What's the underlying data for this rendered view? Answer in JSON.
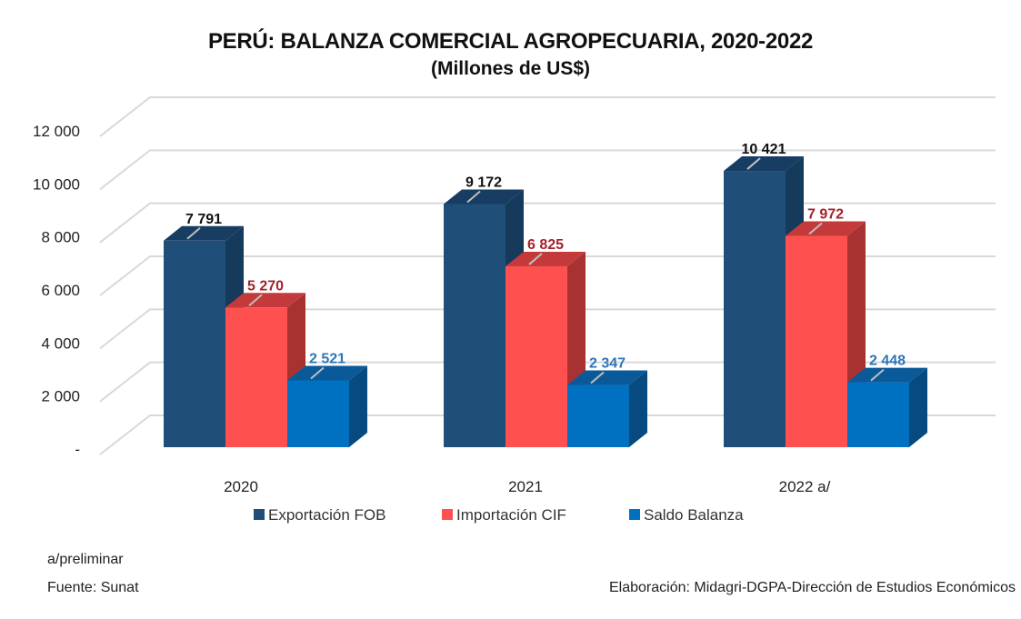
{
  "chart_data": {
    "type": "bar",
    "title": "PERÚ: BALANZA COMERCIAL AGROPECUARIA, 2020-2022",
    "subtitle": "(Millones de US$)",
    "xlabel": "",
    "ylabel": "",
    "categories": [
      "2020",
      "2021",
      "2022 a/"
    ],
    "series": [
      {
        "name": "Exportación FOB",
        "values": [
          7791,
          9172,
          10421
        ],
        "labels": [
          "7 791",
          "9 172",
          "10 421"
        ],
        "color": "#1f4e79",
        "side": "#163a5c",
        "top": "#173d63",
        "label_color": "#111111"
      },
      {
        "name": "Importación CIF",
        "values": [
          5270,
          6825,
          7972
        ],
        "labels": [
          "5 270",
          "6 825",
          "7 972"
        ],
        "color": "#ff5050",
        "side": "#a83232",
        "top": "#c43a3a",
        "label_color": "#a5202a"
      },
      {
        "name": "Saldo Balanza",
        "values": [
          2521,
          2347,
          2448
        ],
        "labels": [
          "2 521",
          "2 347",
          "2 448"
        ],
        "color": "#0070c0",
        "side": "#064a80",
        "top": "#0a5a99",
        "label_color": "#2e75b6"
      }
    ],
    "ylim": [
      0,
      12000
    ],
    "yticks": [
      0,
      2000,
      4000,
      6000,
      8000,
      10000,
      12000
    ],
    "ytick_labels": [
      "-",
      "2 000",
      "4 000",
      "6 000",
      "8 000",
      "10 000",
      "12 000"
    ],
    "grid": true,
    "legend_position": "bottom"
  },
  "notes": {
    "preliminary": "a/preliminar",
    "source": "Fuente: Sunat",
    "credit": "Elaboración: Midagri-DGPA-Dirección de Estudios Económicos"
  }
}
